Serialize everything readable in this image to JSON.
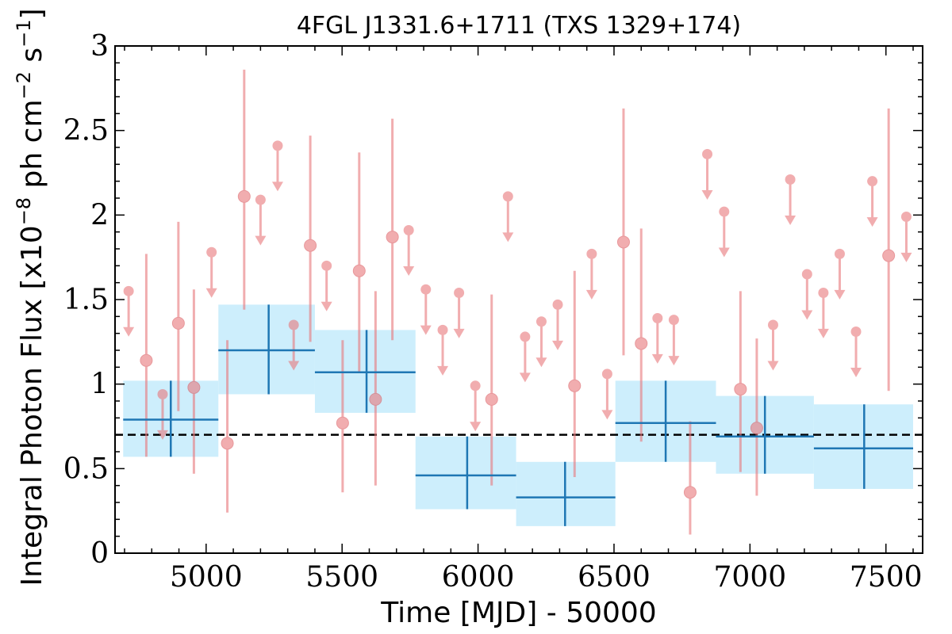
{
  "chart_data": {
    "type": "scatter",
    "title": "4FGL J1331.6+1711 (TXS 1329+174)",
    "xlabel": "Time [MJD] - 50000",
    "ylabel_prefix": "Integral Photon Flux [x10",
    "ylabel_exp1": "−8",
    "ylabel_mid": " ph cm",
    "ylabel_exp2": "−2",
    "ylabel_mid2": " s",
    "ylabel_exp3": "−1",
    "ylabel_suffix": "]",
    "xlim": [
      4665,
      7635
    ],
    "ylim": [
      0,
      3
    ],
    "xticks": [
      5000,
      5500,
      6000,
      6500,
      7000,
      7500
    ],
    "xtick_labels": [
      "5000",
      "5500",
      "6000",
      "6500",
      "7000",
      "7500"
    ],
    "yticks": [
      0,
      0.5,
      1,
      1.5,
      2,
      2.5,
      3
    ],
    "ytick_labels": [
      "0",
      "0.5",
      "1",
      "1.5",
      "2",
      "2.5",
      "3"
    ],
    "reference_line": {
      "y": 0.7,
      "style": "dashed",
      "color": "#000000"
    },
    "colors": {
      "points": "#e8777b",
      "bins_line": "#1f77b4",
      "bins_fill": "#cdeefc"
    },
    "detections": [
      {
        "x": 4780,
        "y": 1.14,
        "ylo": 0.57,
        "yhi": 1.77
      },
      {
        "x": 4898,
        "y": 1.36,
        "ylo": 0.84,
        "yhi": 1.96
      },
      {
        "x": 4955,
        "y": 0.98,
        "ylo": 0.47,
        "yhi": 1.56
      },
      {
        "x": 5078,
        "y": 0.65,
        "ylo": 0.24,
        "yhi": 1.26
      },
      {
        "x": 5140,
        "y": 2.11,
        "ylo": 1.44,
        "yhi": 2.86
      },
      {
        "x": 5383,
        "y": 1.82,
        "ylo": 1.25,
        "yhi": 2.47
      },
      {
        "x": 5502,
        "y": 0.77,
        "ylo": 0.36,
        "yhi": 1.26
      },
      {
        "x": 5563,
        "y": 1.67,
        "ylo": 1.07,
        "yhi": 2.37
      },
      {
        "x": 5623,
        "y": 0.91,
        "ylo": 0.4,
        "yhi": 1.55
      },
      {
        "x": 5685,
        "y": 1.87,
        "ylo": 1.26,
        "yhi": 2.57
      },
      {
        "x": 6050,
        "y": 0.91,
        "ylo": 0.4,
        "yhi": 1.53
      },
      {
        "x": 6355,
        "y": 0.99,
        "ylo": 0.45,
        "yhi": 1.67
      },
      {
        "x": 6535,
        "y": 1.84,
        "ylo": 1.17,
        "yhi": 2.63
      },
      {
        "x": 6600,
        "y": 1.24,
        "ylo": 0.66,
        "yhi": 1.92
      },
      {
        "x": 6780,
        "y": 0.36,
        "ylo": 0.11,
        "yhi": 0.78
      },
      {
        "x": 6965,
        "y": 0.97,
        "ylo": 0.48,
        "yhi": 1.55
      },
      {
        "x": 7025,
        "y": 0.74,
        "ylo": 0.34,
        "yhi": 1.27
      },
      {
        "x": 7510,
        "y": 1.76,
        "ylo": 0.96,
        "yhi": 2.63
      }
    ],
    "upper_limits": [
      {
        "x": 4715,
        "y": 1.55
      },
      {
        "x": 4840,
        "y": 0.94
      },
      {
        "x": 5020,
        "y": 1.78
      },
      {
        "x": 5200,
        "y": 2.09
      },
      {
        "x": 5263,
        "y": 2.41
      },
      {
        "x": 5322,
        "y": 1.35
      },
      {
        "x": 5443,
        "y": 1.7
      },
      {
        "x": 5745,
        "y": 1.91
      },
      {
        "x": 5808,
        "y": 1.56
      },
      {
        "x": 5870,
        "y": 1.32
      },
      {
        "x": 5930,
        "y": 1.54
      },
      {
        "x": 5990,
        "y": 0.99
      },
      {
        "x": 6110,
        "y": 2.11
      },
      {
        "x": 6173,
        "y": 1.28
      },
      {
        "x": 6233,
        "y": 1.37
      },
      {
        "x": 6293,
        "y": 1.47
      },
      {
        "x": 6418,
        "y": 1.77
      },
      {
        "x": 6475,
        "y": 1.06
      },
      {
        "x": 6660,
        "y": 1.39
      },
      {
        "x": 6720,
        "y": 1.38
      },
      {
        "x": 6843,
        "y": 2.36
      },
      {
        "x": 6905,
        "y": 2.02
      },
      {
        "x": 7085,
        "y": 1.35
      },
      {
        "x": 7148,
        "y": 2.21
      },
      {
        "x": 7210,
        "y": 1.65
      },
      {
        "x": 7270,
        "y": 1.54
      },
      {
        "x": 7330,
        "y": 1.77
      },
      {
        "x": 7390,
        "y": 1.31
      },
      {
        "x": 7450,
        "y": 2.2
      },
      {
        "x": 7575,
        "y": 1.99
      }
    ],
    "bins": [
      {
        "x0": 4695,
        "x1": 5045,
        "xc": 4870,
        "y": 0.79,
        "ylo": 0.57,
        "yhi": 1.02
      },
      {
        "x0": 5045,
        "x1": 5400,
        "xc": 5230,
        "y": 1.2,
        "ylo": 0.94,
        "yhi": 1.47
      },
      {
        "x0": 5400,
        "x1": 5770,
        "xc": 5590,
        "y": 1.07,
        "ylo": 0.83,
        "yhi": 1.32
      },
      {
        "x0": 5770,
        "x1": 6140,
        "xc": 5960,
        "y": 0.46,
        "ylo": 0.26,
        "yhi": 0.69
      },
      {
        "x0": 6140,
        "x1": 6505,
        "xc": 6320,
        "y": 0.33,
        "ylo": 0.16,
        "yhi": 0.54
      },
      {
        "x0": 6505,
        "x1": 6875,
        "xc": 6690,
        "y": 0.77,
        "ylo": 0.54,
        "yhi": 1.02
      },
      {
        "x0": 6875,
        "x1": 7235,
        "xc": 7055,
        "y": 0.69,
        "ylo": 0.47,
        "yhi": 0.93
      },
      {
        "x0": 7235,
        "x1": 7600,
        "xc": 7420,
        "y": 0.62,
        "ylo": 0.38,
        "yhi": 0.88
      }
    ]
  }
}
